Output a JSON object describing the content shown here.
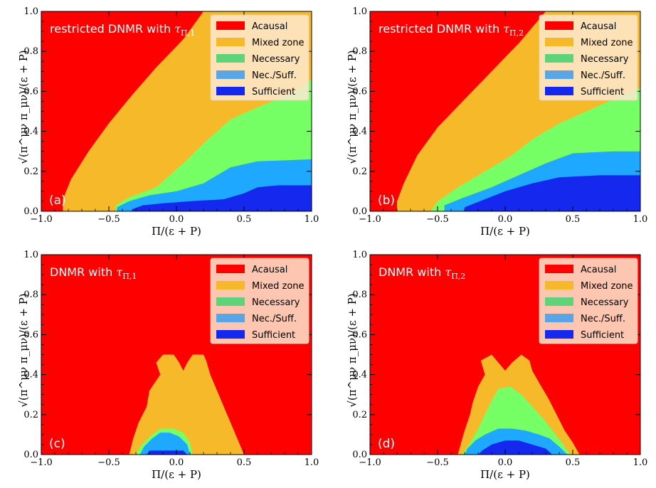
{
  "colors": {
    "acausal": "#ff0000",
    "mixed": "#f5b92a",
    "necessary": "#77ff66",
    "necessary_legend": "#5fd37a",
    "necsuff": "#1ea8ff",
    "necsuff_legend": "#5aa5e6",
    "sufficient": "#1428ee",
    "legend_bg": "#fde9cf"
  },
  "chart_data": [
    {
      "type": "heatmap",
      "panel_label": "(a)",
      "title_prefix": "restricted DNMR with",
      "title_symbol": "τ",
      "title_subscript": "Π,1",
      "xlabel": "Π/(ε + P)",
      "ylabel": "√(π^μν π_μν)/(ε + P)",
      "xlim": [
        -1.0,
        1.0
      ],
      "ylim": [
        0.0,
        1.0
      ],
      "x_ticks": [
        "−1.0",
        "−0.5",
        "0.0",
        "0.5",
        "1.0"
      ],
      "y_ticks": [
        "0.0",
        "0.2",
        "0.4",
        "0.6",
        "0.8",
        "1.0"
      ],
      "legend": [
        "Acausal",
        "Mixed zone",
        "Necessary",
        "Nec./Suff.",
        "Sufficient"
      ],
      "legend_location": "top-right",
      "regions": [
        {
          "name": "Acausal",
          "polygon": [
            [
              -1.0,
              0.0
            ],
            [
              1.0,
              0.0
            ],
            [
              1.0,
              1.0
            ],
            [
              -1.0,
              1.0
            ]
          ]
        },
        {
          "name": "Mixed zone",
          "polygon": [
            [
              -0.84,
              0.0
            ],
            [
              1.0,
              0.0
            ],
            [
              1.0,
              1.0
            ],
            [
              0.2,
              1.0
            ],
            [
              0.05,
              0.86
            ],
            [
              -0.15,
              0.72
            ],
            [
              -0.33,
              0.58
            ],
            [
              -0.5,
              0.44
            ],
            [
              -0.65,
              0.3
            ],
            [
              -0.78,
              0.16
            ],
            [
              -0.84,
              0.06
            ]
          ]
        },
        {
          "name": "Necessary",
          "polygon": [
            [
              -0.45,
              0.0
            ],
            [
              1.0,
              0.0
            ],
            [
              1.0,
              0.66
            ],
            [
              0.88,
              0.6
            ],
            [
              0.6,
              0.52
            ],
            [
              0.4,
              0.46
            ],
            [
              0.2,
              0.34
            ],
            [
              0.05,
              0.24
            ],
            [
              -0.15,
              0.12
            ],
            [
              -0.35,
              0.07
            ],
            [
              -0.45,
              0.03
            ]
          ]
        },
        {
          "name": "Nec./Suff.",
          "polygon": [
            [
              -0.44,
              0.0
            ],
            [
              1.0,
              0.0
            ],
            [
              1.0,
              0.26
            ],
            [
              0.6,
              0.25
            ],
            [
              0.4,
              0.22
            ],
            [
              0.2,
              0.14
            ],
            [
              0.0,
              0.1
            ],
            [
              -0.2,
              0.08
            ],
            [
              -0.35,
              0.05
            ],
            [
              -0.44,
              0.02
            ]
          ]
        },
        {
          "name": "Sufficient",
          "polygon": [
            [
              -0.33,
              0.0
            ],
            [
              1.0,
              0.0
            ],
            [
              1.0,
              0.13
            ],
            [
              0.75,
              0.13
            ],
            [
              0.6,
              0.12
            ],
            [
              0.5,
              0.09
            ],
            [
              0.35,
              0.06
            ],
            [
              0.1,
              0.05
            ],
            [
              -0.1,
              0.04
            ],
            [
              -0.25,
              0.03
            ],
            [
              -0.33,
              0.01
            ]
          ]
        }
      ]
    },
    {
      "type": "heatmap",
      "panel_label": "(b)",
      "title_prefix": "restricted DNMR with",
      "title_symbol": "τ",
      "title_subscript": "Π,2",
      "xlabel": "Π/(ε + P)",
      "ylabel": "√(π^μν π_μν)/(ε + P)",
      "xlim": [
        -1.0,
        1.0
      ],
      "ylim": [
        0.0,
        1.0
      ],
      "x_ticks": [
        "−1.0",
        "−0.5",
        "0.0",
        "0.5",
        "1.0"
      ],
      "y_ticks": [
        "0.0",
        "0.2",
        "0.4",
        "0.6",
        "0.8",
        "1.0"
      ],
      "legend": [
        "Acausal",
        "Mixed zone",
        "Necessary",
        "Nec./Suff.",
        "Sufficient"
      ],
      "legend_location": "top-right",
      "regions": [
        {
          "name": "Acausal",
          "polygon": [
            [
              -1.0,
              0.0
            ],
            [
              1.0,
              0.0
            ],
            [
              1.0,
              1.0
            ],
            [
              -1.0,
              1.0
            ]
          ]
        },
        {
          "name": "Mixed zone",
          "polygon": [
            [
              -0.8,
              0.0
            ],
            [
              1.0,
              0.0
            ],
            [
              1.0,
              1.0
            ],
            [
              0.3,
              1.0
            ],
            [
              0.1,
              0.84
            ],
            [
              -0.1,
              0.7
            ],
            [
              -0.3,
              0.56
            ],
            [
              -0.5,
              0.42
            ],
            [
              -0.65,
              0.28
            ],
            [
              -0.75,
              0.14
            ],
            [
              -0.8,
              0.05
            ]
          ]
        },
        {
          "name": "Necessary",
          "polygon": [
            [
              -0.55,
              0.0
            ],
            [
              1.0,
              0.0
            ],
            [
              1.0,
              0.62
            ],
            [
              0.8,
              0.56
            ],
            [
              0.6,
              0.5
            ],
            [
              0.4,
              0.44
            ],
            [
              0.2,
              0.36
            ],
            [
              0.05,
              0.28
            ],
            [
              -0.15,
              0.2
            ],
            [
              -0.35,
              0.12
            ],
            [
              -0.5,
              0.05
            ]
          ]
        },
        {
          "name": "Nec./Suff.",
          "polygon": [
            [
              -0.45,
              0.0
            ],
            [
              1.0,
              0.0
            ],
            [
              1.0,
              0.3
            ],
            [
              0.8,
              0.3
            ],
            [
              0.5,
              0.29
            ],
            [
              0.3,
              0.24
            ],
            [
              0.1,
              0.18
            ],
            [
              -0.1,
              0.12
            ],
            [
              -0.3,
              0.07
            ],
            [
              -0.45,
              0.03
            ]
          ]
        },
        {
          "name": "Sufficient",
          "polygon": [
            [
              -0.3,
              0.0
            ],
            [
              1.0,
              0.0
            ],
            [
              1.0,
              0.18
            ],
            [
              0.7,
              0.18
            ],
            [
              0.4,
              0.17
            ],
            [
              0.2,
              0.14
            ],
            [
              0.0,
              0.1
            ],
            [
              -0.15,
              0.06
            ],
            [
              -0.3,
              0.02
            ]
          ]
        }
      ]
    },
    {
      "type": "heatmap",
      "panel_label": "(c)",
      "title_prefix": "DNMR with",
      "title_symbol": "τ",
      "title_subscript": "Π,1",
      "xlabel": "Π/(ε + P)",
      "ylabel": "√(π^μν π_μν)/(ε + P)",
      "xlim": [
        -1.0,
        1.0
      ],
      "ylim": [
        0.0,
        1.0
      ],
      "x_ticks": [
        "−1.0",
        "−0.5",
        "0.0",
        "0.5",
        "1.0"
      ],
      "y_ticks": [
        "0.0",
        "0.2",
        "0.4",
        "0.6",
        "0.8",
        "1.0"
      ],
      "legend": [
        "Acausal",
        "Mixed zone",
        "Necessary",
        "Nec./Suff.",
        "Sufficient"
      ],
      "legend_location": "top-right",
      "regions": [
        {
          "name": "Acausal",
          "polygon": [
            [
              -1.0,
              0.0
            ],
            [
              1.0,
              0.0
            ],
            [
              1.0,
              1.0
            ],
            [
              -1.0,
              1.0
            ]
          ]
        },
        {
          "name": "Mixed zone",
          "polygon": [
            [
              -0.35,
              0.0
            ],
            [
              0.5,
              0.0
            ],
            [
              0.45,
              0.08
            ],
            [
              0.4,
              0.16
            ],
            [
              0.35,
              0.24
            ],
            [
              0.3,
              0.32
            ],
            [
              0.25,
              0.4
            ],
            [
              0.22,
              0.47
            ],
            [
              0.2,
              0.5
            ],
            [
              0.12,
              0.5
            ],
            [
              0.08,
              0.46
            ],
            [
              0.05,
              0.42
            ],
            [
              0.02,
              0.46
            ],
            [
              -0.02,
              0.5
            ],
            [
              -0.1,
              0.5
            ],
            [
              -0.15,
              0.46
            ],
            [
              -0.12,
              0.4
            ],
            [
              -0.2,
              0.32
            ],
            [
              -0.22,
              0.24
            ],
            [
              -0.28,
              0.16
            ],
            [
              -0.32,
              0.08
            ]
          ]
        },
        {
          "name": "Necessary",
          "polygon": [
            [
              -0.3,
              0.0
            ],
            [
              0.12,
              0.0
            ],
            [
              0.1,
              0.06
            ],
            [
              0.05,
              0.11
            ],
            [
              -0.02,
              0.13
            ],
            [
              -0.12,
              0.13
            ],
            [
              -0.18,
              0.1
            ],
            [
              -0.24,
              0.06
            ],
            [
              -0.28,
              0.03
            ]
          ]
        },
        {
          "name": "Nec./Suff.",
          "polygon": [
            [
              -0.27,
              0.0
            ],
            [
              0.1,
              0.0
            ],
            [
              0.08,
              0.05
            ],
            [
              0.02,
              0.09
            ],
            [
              -0.05,
              0.11
            ],
            [
              -0.12,
              0.11
            ],
            [
              -0.18,
              0.08
            ],
            [
              -0.24,
              0.04
            ]
          ]
        },
        {
          "name": "Sufficient",
          "polygon": [
            [
              -0.22,
              0.0
            ],
            [
              0.08,
              0.0
            ],
            [
              0.05,
              0.02
            ],
            [
              -0.2,
              0.02
            ]
          ]
        }
      ]
    },
    {
      "type": "heatmap",
      "panel_label": "(d)",
      "title_prefix": "DNMR with",
      "title_symbol": "τ",
      "title_subscript": "Π,2",
      "xlabel": "Π/(ε + P)",
      "ylabel": "√(π^μν π_μν)/(ε + P)",
      "xlim": [
        -1.0,
        1.0
      ],
      "ylim": [
        0.0,
        1.0
      ],
      "x_ticks": [
        "−1.0",
        "−0.5",
        "0.0",
        "0.5",
        "1.0"
      ],
      "y_ticks": [
        "0.0",
        "0.2",
        "0.4",
        "0.6",
        "0.8",
        "1.0"
      ],
      "legend": [
        "Acausal",
        "Mixed zone",
        "Necessary",
        "Nec./Suff.",
        "Sufficient"
      ],
      "legend_location": "top-right",
      "regions": [
        {
          "name": "Acausal",
          "polygon": [
            [
              -1.0,
              0.0
            ],
            [
              1.0,
              0.0
            ],
            [
              1.0,
              1.0
            ],
            [
              -1.0,
              1.0
            ]
          ]
        },
        {
          "name": "Mixed zone",
          "polygon": [
            [
              -0.35,
              0.0
            ],
            [
              0.55,
              0.0
            ],
            [
              0.5,
              0.06
            ],
            [
              0.44,
              0.12
            ],
            [
              0.38,
              0.2
            ],
            [
              0.32,
              0.28
            ],
            [
              0.25,
              0.36
            ],
            [
              0.2,
              0.42
            ],
            [
              0.18,
              0.47
            ],
            [
              0.12,
              0.5
            ],
            [
              0.05,
              0.46
            ],
            [
              0.0,
              0.42
            ],
            [
              -0.05,
              0.46
            ],
            [
              -0.1,
              0.5
            ],
            [
              -0.18,
              0.47
            ],
            [
              -0.15,
              0.4
            ],
            [
              -0.2,
              0.34
            ],
            [
              -0.24,
              0.26
            ],
            [
              -0.26,
              0.2
            ],
            [
              -0.3,
              0.12
            ],
            [
              -0.33,
              0.05
            ]
          ]
        },
        {
          "name": "Necessary",
          "polygon": [
            [
              -0.32,
              0.0
            ],
            [
              0.48,
              0.0
            ],
            [
              0.42,
              0.06
            ],
            [
              0.35,
              0.12
            ],
            [
              0.28,
              0.18
            ],
            [
              0.2,
              0.24
            ],
            [
              0.12,
              0.3
            ],
            [
              0.04,
              0.34
            ],
            [
              -0.05,
              0.33
            ],
            [
              -0.1,
              0.27
            ],
            [
              -0.15,
              0.2
            ],
            [
              -0.2,
              0.13
            ],
            [
              -0.26,
              0.06
            ]
          ]
        },
        {
          "name": "Nec./Suff.",
          "polygon": [
            [
              -0.3,
              0.0
            ],
            [
              0.46,
              0.0
            ],
            [
              0.4,
              0.04
            ],
            [
              0.33,
              0.08
            ],
            [
              0.25,
              0.1
            ],
            [
              0.15,
              0.12
            ],
            [
              0.05,
              0.13
            ],
            [
              -0.05,
              0.13
            ],
            [
              -0.15,
              0.1
            ],
            [
              -0.22,
              0.07
            ],
            [
              -0.28,
              0.03
            ]
          ]
        },
        {
          "name": "Sufficient",
          "polygon": [
            [
              -0.2,
              0.0
            ],
            [
              0.35,
              0.0
            ],
            [
              0.3,
              0.03
            ],
            [
              0.2,
              0.05
            ],
            [
              0.1,
              0.07
            ],
            [
              0.0,
              0.07
            ],
            [
              -0.1,
              0.05
            ],
            [
              -0.17,
              0.02
            ]
          ]
        }
      ]
    }
  ]
}
